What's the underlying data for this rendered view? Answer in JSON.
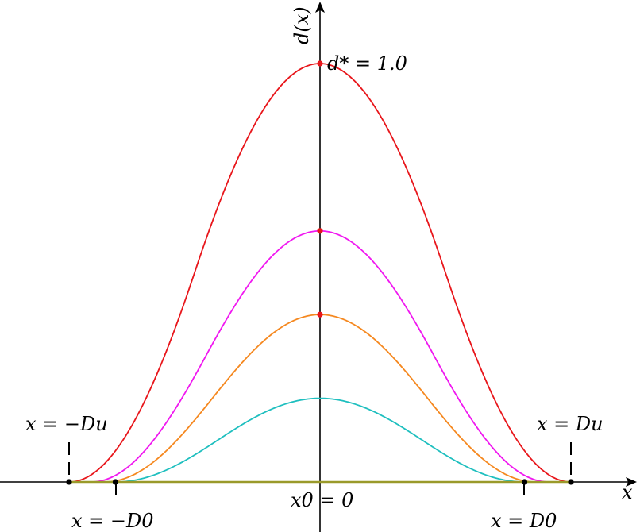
{
  "labels": {
    "y_axis": "d(x)",
    "x_axis": "x",
    "peak": "d* = 1.0",
    "origin": "x0 = 0",
    "left_outer": "x = −Du",
    "right_outer": "x = Du",
    "left_inner": "x = −D0",
    "right_inner": "x = D0"
  },
  "chart_data": {
    "type": "line",
    "xlabel": "x",
    "ylabel": "d(x)",
    "domain": {
      "D0": 0.815,
      "Du": 1.0
    },
    "ylim": [
      0,
      1.0
    ],
    "series": [
      {
        "peak": 1.0,
        "halfwidth": 1.0,
        "color": "#e8161b",
        "peak_marker": true
      },
      {
        "peak": 0.6,
        "halfwidth": 0.912,
        "color": "#f018f0",
        "peak_marker": true
      },
      {
        "peak": 0.4,
        "halfwidth": 0.858,
        "color": "#f5881f",
        "peak_marker": true
      },
      {
        "peak": 0.2,
        "halfwidth": 0.815,
        "color": "#1fbfbf",
        "peak_marker": false
      },
      {
        "peak": 0.0,
        "halfwidth": 1.0,
        "color": "#9a9a2a",
        "peak_marker": false
      }
    ],
    "points": [
      {
        "x": -1.0,
        "y": 0
      },
      {
        "x": -0.815,
        "y": 0
      },
      {
        "x": 0.815,
        "y": 0
      },
      {
        "x": 1.0,
        "y": 0
      }
    ],
    "grid": false
  }
}
